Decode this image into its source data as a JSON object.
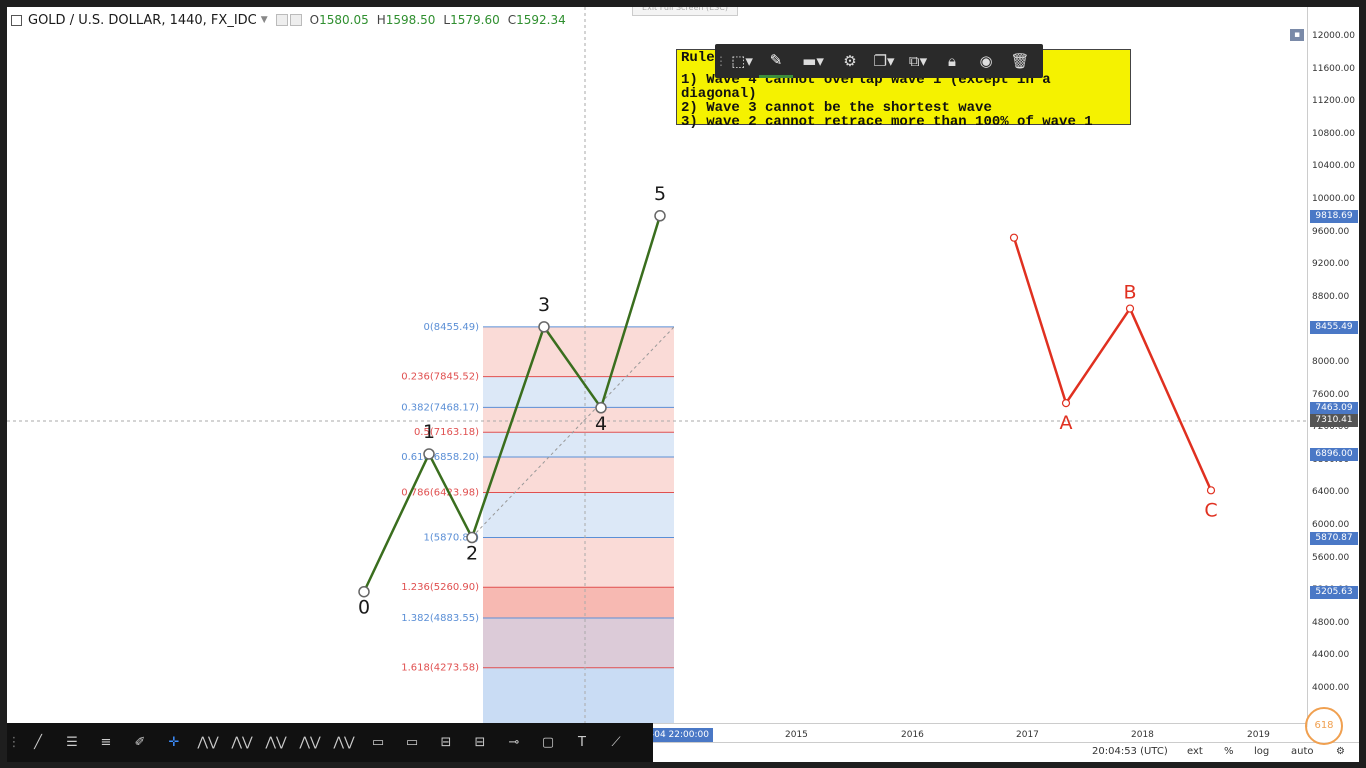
{
  "header": {
    "symbol": "GOLD / U.S. DOLLAR, 1440, FX_IDC",
    "open_label": "O",
    "open": "1580.05",
    "high_label": "H",
    "high": "1598.50",
    "low_label": "L",
    "low": "1579.60",
    "close_label": "C",
    "close": "1592.34",
    "exit_fullscreen": "Exit Full Screen (ESC)"
  },
  "rules": {
    "heading": "Rule",
    "lines": [
      "1) Wave 4 cannot overlap wave 1 (except in a diagonal)",
      "2) Wave 3 cannot be the shortest wave",
      "3) wave 2 cannot retrace more than 100% of wave 1"
    ]
  },
  "drawing_toolbar": {
    "icons": [
      "grip-icon",
      "select-area-icon",
      "pencil-icon",
      "line-style-icon",
      "gear-icon",
      "layers-icon",
      "clone-icon",
      "lock-icon",
      "eye-icon",
      "trash-icon"
    ]
  },
  "price_axis": {
    "ticks": [
      "12000.00",
      "11600.00",
      "11200.00",
      "10800.00",
      "10400.00",
      "10000.00",
      "9600.00",
      "9200.00",
      "8800.00",
      "8400.00",
      "8000.00",
      "7600.00",
      "7200.00",
      "6800.00",
      "6400.00",
      "6000.00",
      "5600.00",
      "5200.00",
      "4800.00",
      "4400.00",
      "4000.00"
    ],
    "labels": [
      {
        "text": "9818.69",
        "color": "#4a78c6"
      },
      {
        "text": "8455.49",
        "color": "#4a78c6"
      },
      {
        "text": "7463.09",
        "color": "#4a78c6"
      },
      {
        "text": "7310.41",
        "color": "#555555"
      },
      {
        "text": "6896.00",
        "color": "#4a78c6"
      },
      {
        "text": "5870.87",
        "color": "#4a78c6"
      },
      {
        "text": "5205.63",
        "color": "#4a78c6"
      }
    ]
  },
  "time_axis": {
    "cursor_label": "-04 22:00:00",
    "years": [
      "2015",
      "2016",
      "2017",
      "2018",
      "2019"
    ]
  },
  "fib": {
    "levels": [
      {
        "ratio": "0",
        "price": "8455.49",
        "label": "0(8455.49)",
        "color": "#5b8fd6"
      },
      {
        "ratio": "0.236",
        "price": "7845.52",
        "label": "0.236(7845.52)",
        "color": "#e05050"
      },
      {
        "ratio": "0.382",
        "price": "7468.17",
        "label": "0.382(7468.17)",
        "color": "#5b8fd6"
      },
      {
        "ratio": "0.5",
        "price": "7163.18",
        "label": "0.5(7163.18)",
        "color": "#e05050"
      },
      {
        "ratio": "0.618",
        "price": "6858.20",
        "label": "0.618(6858.20)",
        "color": "#5b8fd6"
      },
      {
        "ratio": "0.786",
        "price": "6423.98",
        "label": "0.786(6423.98)",
        "color": "#e05050"
      },
      {
        "ratio": "1",
        "price": "5870.87",
        "label": "1(5870.87)",
        "color": "#5b8fd6"
      },
      {
        "ratio": "1.236",
        "price": "5260.90",
        "label": "1.236(5260.90)",
        "color": "#e05050"
      },
      {
        "ratio": "1.382",
        "price": "4883.55",
        "label": "1.382(4883.55)",
        "color": "#5b8fd6"
      },
      {
        "ratio": "1.618",
        "price": "4273.58",
        "label": "1.618(4273.58)",
        "color": "#e05050"
      }
    ]
  },
  "impulse_wave": {
    "color": "#3a6e1e",
    "points": [
      {
        "label": "0",
        "price": 5205.63
      },
      {
        "label": "1",
        "price": 6896.0
      },
      {
        "label": "2",
        "price": 5870.87
      },
      {
        "label": "3",
        "price": 8455.49
      },
      {
        "label": "4",
        "price": 7463.09
      },
      {
        "label": "5",
        "price": 9818.69
      }
    ]
  },
  "corrective_wave": {
    "color": "#e03020",
    "points": [
      {
        "label": "",
        "price": 9550
      },
      {
        "label": "A",
        "price": 7520
      },
      {
        "label": "B",
        "price": 8680
      },
      {
        "label": "C",
        "price": 6450
      }
    ]
  },
  "bottom_bar": {
    "time": "20:04:53 (UTC)",
    "ext": "ext",
    "percent": "%",
    "log": "log",
    "auto": "auto",
    "logo": "618"
  },
  "bottom_tools": [
    "grip-icon",
    "trend-line-icon",
    "horizontal-lines-icon",
    "fib-icon",
    "brush-icon",
    "crosshair-icon",
    "pattern-icon",
    "elliott-impulse-icon",
    "elliott-correction-icon",
    "elliott-triangle-icon",
    "elliott-double-icon",
    "callout-icon",
    "comment-icon",
    "fib-retracement-icon",
    "fib-extension-icon",
    "price-line-icon",
    "rectangle-icon",
    "text-icon",
    "measure-icon"
  ]
}
